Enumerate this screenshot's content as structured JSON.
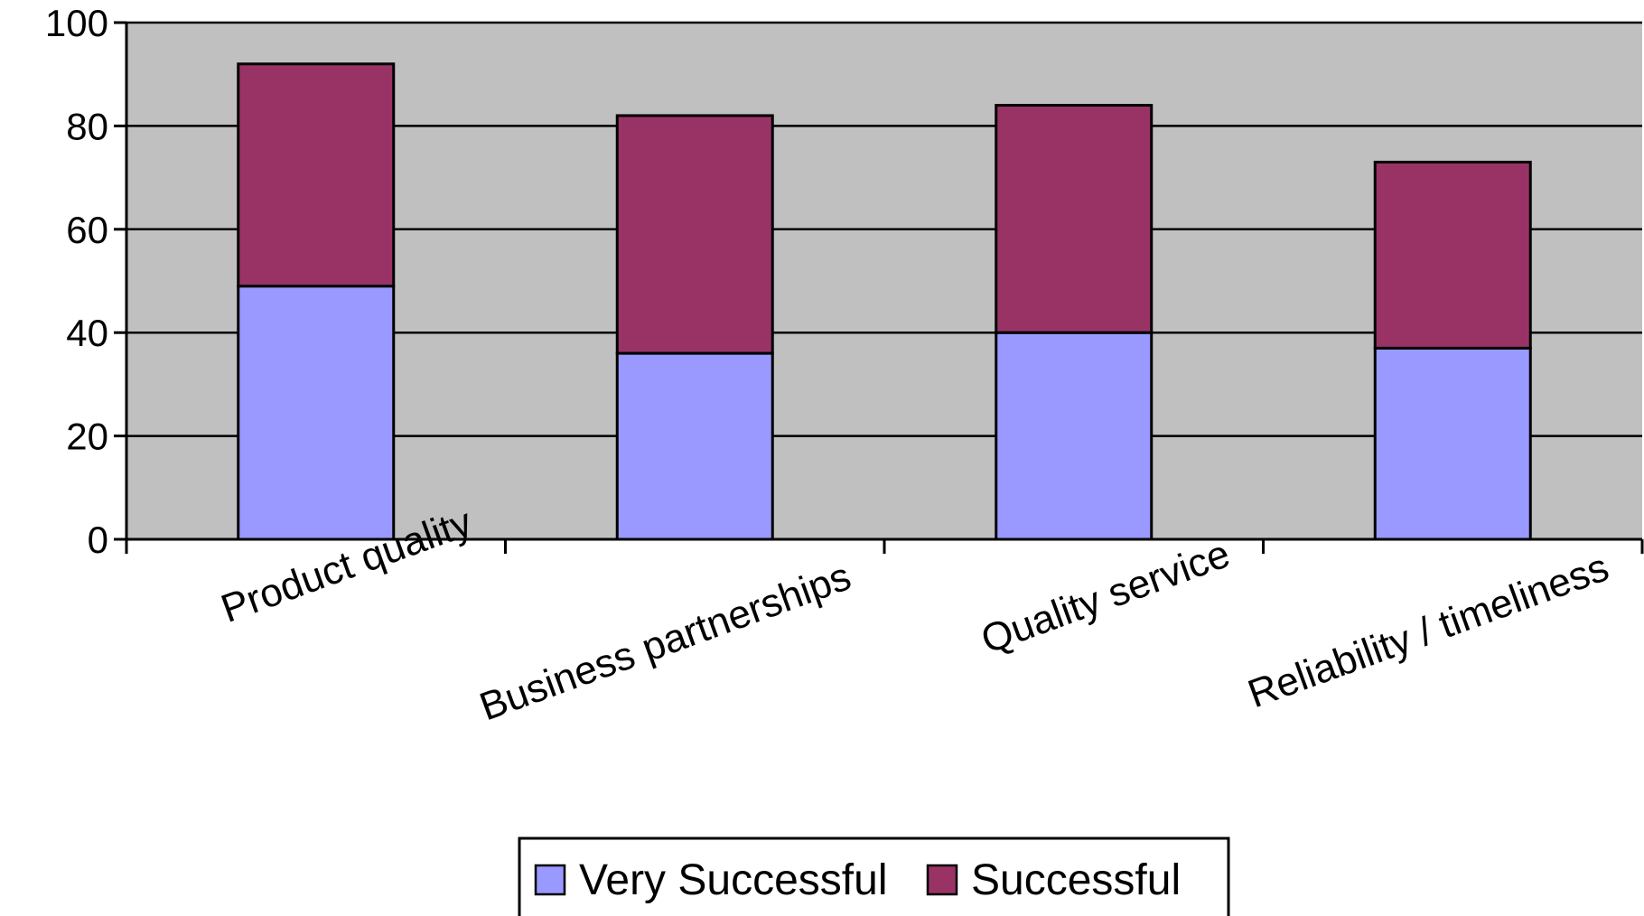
{
  "chart_data": {
    "type": "bar",
    "stacked": true,
    "categories": [
      "Product quality",
      "Business partnerships",
      "Quality service",
      "Reliability / timeliness"
    ],
    "series": [
      {
        "name": "Very Successful",
        "values": [
          49,
          36,
          40,
          37
        ],
        "color": "#9999ff"
      },
      {
        "name": "Successful",
        "values": [
          43,
          46,
          44,
          36
        ],
        "color": "#993366"
      }
    ],
    "ylim": [
      0,
      100
    ],
    "yticks": [
      0,
      20,
      40,
      60,
      80,
      100
    ],
    "grid": true,
    "plot_background": "#c0c0c0",
    "legend": "bottom",
    "title": "",
    "xlabel": "",
    "ylabel": ""
  }
}
